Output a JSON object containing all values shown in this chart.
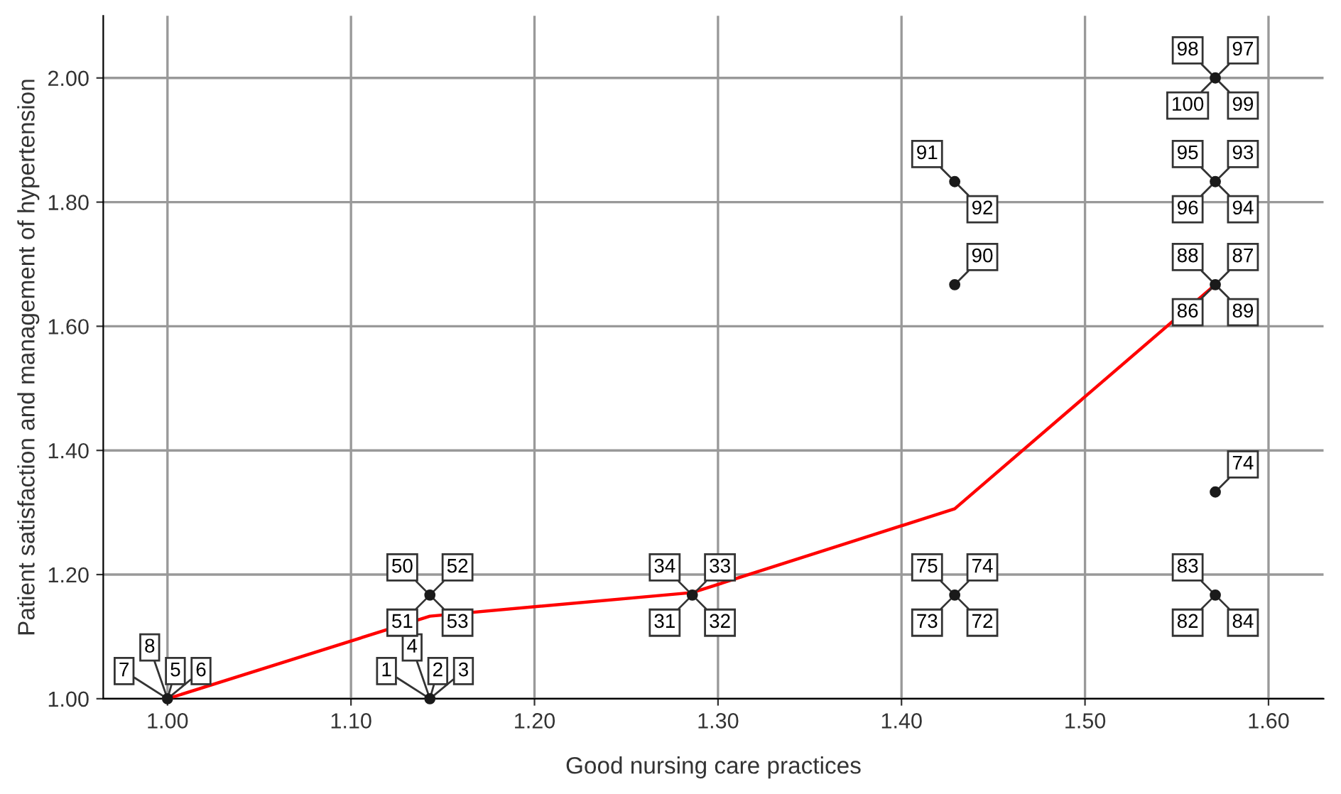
{
  "chart_data": {
    "type": "scatter",
    "xlabel": "Good nursing care practices",
    "ylabel": "Patient satisfaction and management of hypertension",
    "xlim": [
      0.965,
      1.63
    ],
    "ylim": [
      1.0,
      2.1
    ],
    "xticks": [
      {
        "value": 1.0,
        "label": "1.00"
      },
      {
        "value": 1.1,
        "label": "1.10"
      },
      {
        "value": 1.2,
        "label": "1.20"
      },
      {
        "value": 1.3,
        "label": "1.30"
      },
      {
        "value": 1.4,
        "label": "1.40"
      },
      {
        "value": 1.5,
        "label": "1.50"
      },
      {
        "value": 1.6,
        "label": "1.60"
      }
    ],
    "yticks": [
      {
        "value": 1.0,
        "label": "1.00"
      },
      {
        "value": 1.2,
        "label": "1.20"
      },
      {
        "value": 1.4,
        "label": "1.40"
      },
      {
        "value": 1.6,
        "label": "1.60"
      },
      {
        "value": 1.8,
        "label": "1.80"
      },
      {
        "value": 2.0,
        "label": "2.00"
      }
    ],
    "grid": true,
    "marker": "circle",
    "series": [
      {
        "color": "#1a1a1a",
        "x": [
          1.0,
          1.143,
          1.143,
          1.286,
          1.429,
          1.429,
          1.429,
          1.571,
          1.571,
          1.571,
          1.571,
          1.571
        ],
        "values": [
          1.0,
          1.0,
          1.167,
          1.167,
          1.833,
          1.667,
          1.167,
          2.0,
          1.833,
          1.667,
          1.333,
          1.167
        ]
      },
      {
        "type": "line",
        "color": "#ff0000",
        "marker": "none",
        "x": [
          1.0,
          1.143,
          1.286,
          1.429,
          1.571
        ],
        "values": [
          1.0,
          1.133,
          1.171,
          1.306,
          1.667
        ]
      }
    ],
    "annotations": [
      {
        "text": "7",
        "x": 1.0,
        "y": 1.0
      },
      {
        "text": "8",
        "x": 1.0,
        "y": 1.0
      },
      {
        "text": "5",
        "x": 1.0,
        "y": 1.0
      },
      {
        "text": "6",
        "x": 1.0,
        "y": 1.0
      },
      {
        "text": "1",
        "x": 1.143,
        "y": 1.0
      },
      {
        "text": "4",
        "x": 1.143,
        "y": 1.0
      },
      {
        "text": "2",
        "x": 1.143,
        "y": 1.0
      },
      {
        "text": "3",
        "x": 1.143,
        "y": 1.0
      },
      {
        "text": "50",
        "x": 1.143,
        "y": 1.167
      },
      {
        "text": "52",
        "x": 1.143,
        "y": 1.167
      },
      {
        "text": "51",
        "x": 1.143,
        "y": 1.167
      },
      {
        "text": "53",
        "x": 1.143,
        "y": 1.167
      },
      {
        "text": "34",
        "x": 1.286,
        "y": 1.167
      },
      {
        "text": "33",
        "x": 1.286,
        "y": 1.167
      },
      {
        "text": "31",
        "x": 1.286,
        "y": 1.167
      },
      {
        "text": "32",
        "x": 1.286,
        "y": 1.167
      },
      {
        "text": "91",
        "x": 1.429,
        "y": 1.833
      },
      {
        "text": "92",
        "x": 1.429,
        "y": 1.833
      },
      {
        "text": "90",
        "x": 1.429,
        "y": 1.667
      },
      {
        "text": "75",
        "x": 1.429,
        "y": 1.167
      },
      {
        "text": "74",
        "x": 1.429,
        "y": 1.167
      },
      {
        "text": "73",
        "x": 1.429,
        "y": 1.167
      },
      {
        "text": "72",
        "x": 1.429,
        "y": 1.167
      },
      {
        "text": "98",
        "x": 1.571,
        "y": 2.0
      },
      {
        "text": "97",
        "x": 1.571,
        "y": 2.0
      },
      {
        "text": "100",
        "x": 1.571,
        "y": 2.0
      },
      {
        "text": "99",
        "x": 1.571,
        "y": 2.0
      },
      {
        "text": "95",
        "x": 1.571,
        "y": 1.833
      },
      {
        "text": "93",
        "x": 1.571,
        "y": 1.833
      },
      {
        "text": "96",
        "x": 1.571,
        "y": 1.833
      },
      {
        "text": "94",
        "x": 1.571,
        "y": 1.833
      },
      {
        "text": "88",
        "x": 1.571,
        "y": 1.667
      },
      {
        "text": "87",
        "x": 1.571,
        "y": 1.667
      },
      {
        "text": "86",
        "x": 1.571,
        "y": 1.667
      },
      {
        "text": "89",
        "x": 1.571,
        "y": 1.667
      },
      {
        "text": "74",
        "x": 1.571,
        "y": 1.333
      },
      {
        "text": "83",
        "x": 1.571,
        "y": 1.167
      },
      {
        "text": "82",
        "x": 1.571,
        "y": 1.167
      },
      {
        "text": "84",
        "x": 1.571,
        "y": 1.167
      }
    ]
  }
}
